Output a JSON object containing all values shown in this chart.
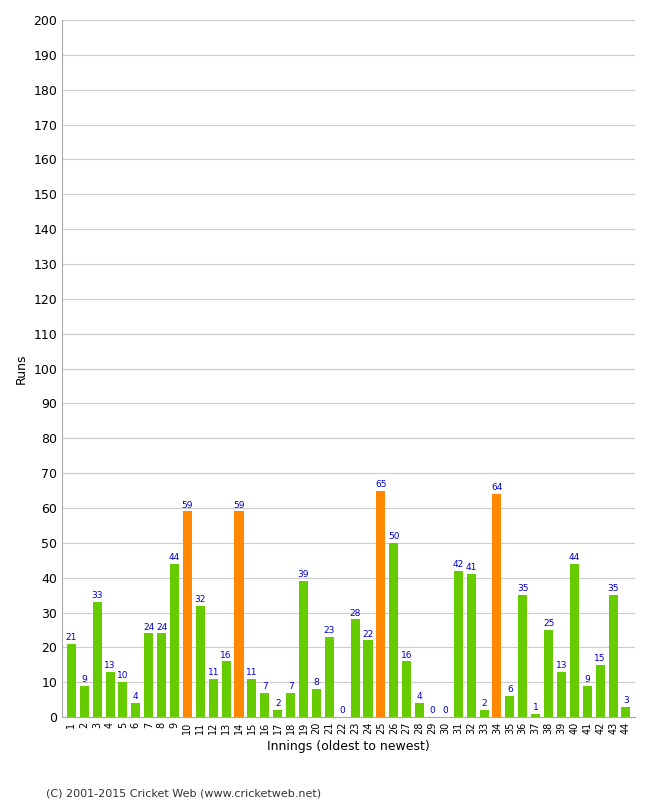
{
  "innings": [
    1,
    2,
    3,
    4,
    5,
    6,
    7,
    8,
    9,
    10,
    11,
    12,
    13,
    14,
    15,
    16,
    17,
    18,
    19,
    20,
    21,
    22,
    23,
    24,
    25,
    26,
    27,
    28,
    29,
    30,
    31,
    32,
    33,
    34,
    35,
    36,
    37,
    38,
    39,
    40,
    41,
    42,
    43,
    44
  ],
  "values": [
    21,
    9,
    33,
    13,
    10,
    4,
    24,
    24,
    44,
    59,
    32,
    11,
    16,
    59,
    11,
    7,
    2,
    7,
    39,
    8,
    23,
    0,
    28,
    22,
    65,
    50,
    16,
    4,
    0,
    0,
    42,
    41,
    2,
    64,
    6,
    35,
    1,
    25,
    13,
    44,
    9,
    15,
    35,
    3
  ],
  "colors": [
    "#66cc00",
    "#66cc00",
    "#66cc00",
    "#66cc00",
    "#66cc00",
    "#66cc00",
    "#66cc00",
    "#66cc00",
    "#66cc00",
    "#ff8800",
    "#66cc00",
    "#66cc00",
    "#66cc00",
    "#ff8800",
    "#66cc00",
    "#66cc00",
    "#66cc00",
    "#66cc00",
    "#66cc00",
    "#66cc00",
    "#66cc00",
    "#66cc00",
    "#66cc00",
    "#66cc00",
    "#ff8800",
    "#66cc00",
    "#66cc00",
    "#66cc00",
    "#66cc00",
    "#66cc00",
    "#66cc00",
    "#66cc00",
    "#66cc00",
    "#ff8800",
    "#66cc00",
    "#66cc00",
    "#66cc00",
    "#66cc00",
    "#66cc00",
    "#66cc00",
    "#66cc00",
    "#66cc00",
    "#66cc00",
    "#66cc00"
  ],
  "xlabel": "Innings (oldest to newest)",
  "ylabel": "Runs",
  "ylim": [
    0,
    200
  ],
  "yticks": [
    0,
    10,
    20,
    30,
    40,
    50,
    60,
    70,
    80,
    90,
    100,
    110,
    120,
    130,
    140,
    150,
    160,
    170,
    180,
    190,
    200
  ],
  "label_color": "#0000cc",
  "background_color": "#ffffff",
  "footer": "(C) 2001-2015 Cricket Web (www.cricketweb.net)"
}
